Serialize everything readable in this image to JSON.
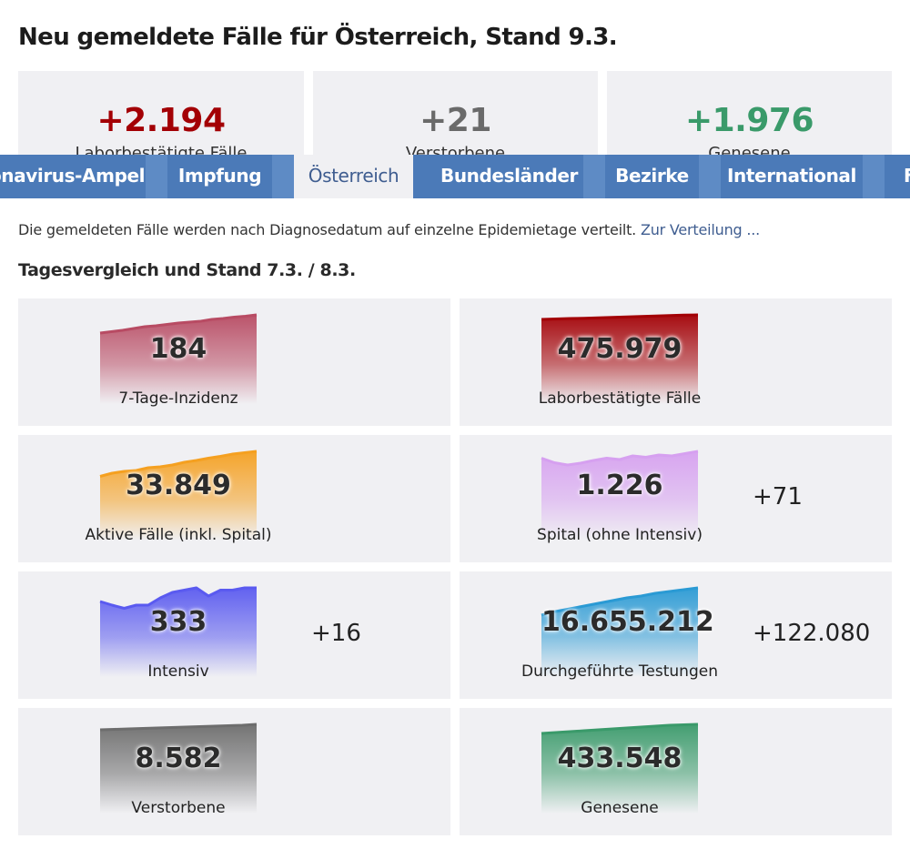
{
  "page": {
    "title": "Neu gemeldete Fälle für Österreich, Stand 9.3."
  },
  "summary": [
    {
      "value": "+2.194",
      "label": "Laborbestätigte Fälle",
      "color": "#a30005"
    },
    {
      "value": "+21",
      "label": "Verstorbene",
      "color": "#6a6a6a"
    },
    {
      "value": "+1.976",
      "label": "Genesene",
      "color": "#3a9a6a"
    }
  ],
  "tabs": [
    {
      "label": "Coronavirus-Ampel"
    },
    {
      "label": "Impfung"
    },
    {
      "label": "Österreich"
    },
    {
      "label": "Bundesländer"
    },
    {
      "label": "Bezirke"
    },
    {
      "label": "International"
    },
    {
      "label": "F"
    }
  ],
  "info": {
    "text": "Die gemeldeten Fälle werden nach Diagnosedatum auf einzelne Epidemietage verteilt.",
    "link": "Zur Verteilung ..."
  },
  "comparison": {
    "heading": "Tagesvergleich und Stand 7.3. / 8.3."
  },
  "cards": [
    {
      "value": "184",
      "label": "7-Tage-Inzidenz",
      "delta": "",
      "color": "#b84b63",
      "trend": [
        0.4,
        0.37,
        0.34,
        0.3,
        0.26,
        0.24,
        0.21,
        0.18,
        0.16,
        0.14,
        0.1,
        0.08,
        0.05,
        0.03,
        0.0
      ]
    },
    {
      "value": "475.979",
      "label": "Laborbestätigte Fälle",
      "delta": "",
      "color": "#a30005",
      "trend": [
        0.1,
        0.09,
        0.08,
        0.075,
        0.065,
        0.055,
        0.045,
        0.035,
        0.025,
        0.015,
        0.005,
        0.0
      ]
    },
    {
      "value": "33.849",
      "label": "Aktive Fälle (inkl. Spital)",
      "delta": "",
      "color": "#f5a020",
      "trend": [
        0.55,
        0.48,
        0.44,
        0.42,
        0.36,
        0.34,
        0.3,
        0.24,
        0.2,
        0.15,
        0.11,
        0.06,
        0.03,
        0.0
      ]
    },
    {
      "value": "1.226",
      "label": "Spital (ohne Intensiv)",
      "delta": "+71",
      "color": "#d6a0f0",
      "trend": [
        0.15,
        0.25,
        0.3,
        0.26,
        0.2,
        0.15,
        0.18,
        0.1,
        0.13,
        0.08,
        0.1,
        0.05,
        0.0
      ]
    },
    {
      "value": "333",
      "label": "Intensiv",
      "delta": "+16",
      "color": "#5a5af0",
      "trend": [
        0.3,
        0.38,
        0.45,
        0.38,
        0.38,
        0.22,
        0.1,
        0.05,
        0.0,
        0.18,
        0.05,
        0.05,
        0.0,
        0.0
      ]
    },
    {
      "value": "16.655.212",
      "label": "Durchgeführte Testungen",
      "delta": "+122.080",
      "color": "#2a9ad4",
      "trend": [
        0.6,
        0.52,
        0.46,
        0.4,
        0.34,
        0.28,
        0.22,
        0.18,
        0.12,
        0.08,
        0.04,
        0.0
      ]
    },
    {
      "value": "8.582",
      "label": "Verstorbene",
      "delta": "",
      "color": "#6d6d6d",
      "trend": [
        0.12,
        0.11,
        0.1,
        0.09,
        0.08,
        0.07,
        0.06,
        0.05,
        0.04,
        0.03,
        0.02,
        0.0
      ]
    },
    {
      "value": "433.548",
      "label": "Genesene",
      "delta": "",
      "color": "#3a9a6a",
      "trend": [
        0.2,
        0.18,
        0.16,
        0.14,
        0.12,
        0.1,
        0.08,
        0.06,
        0.04,
        0.02,
        0.01,
        0.0
      ]
    }
  ]
}
